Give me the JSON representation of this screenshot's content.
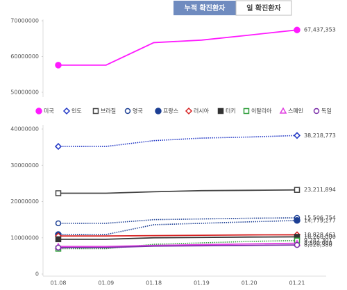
{
  "tabs": [
    "누적 확진환자",
    "일 확진환자"
  ],
  "chart_data": [
    {
      "type": "line",
      "categories": [
        "01.08",
        "01.09",
        "01.18",
        "01.19",
        "01.20",
        "01.21"
      ],
      "ylim": [
        50000000,
        70000000
      ],
      "yticks": [
        50000000,
        60000000,
        70000000
      ],
      "series": [
        {
          "name": "미국",
          "color": "#ff1aff",
          "marker": "filled-circle",
          "dash": "solid",
          "values": [
            57600000,
            57600000,
            63900000,
            64600000,
            66000000,
            67437353
          ],
          "value_labels": [
            null,
            null,
            null,
            null,
            null,
            "67,437,353"
          ]
        }
      ]
    },
    {
      "type": "line",
      "categories": [
        "01.08",
        "01.09",
        "01.18",
        "01.19",
        "01.20",
        "01.21"
      ],
      "ylim": [
        0,
        40000000
      ],
      "yticks": [
        0,
        10000000,
        20000000,
        30000000,
        40000000
      ],
      "series": [
        {
          "name": "인도",
          "color": "#1f35c4",
          "marker": "open-diamond",
          "dash": "dotted",
          "values": [
            35200000,
            35200000,
            36800000,
            37500000,
            37800000,
            38218773
          ],
          "value_labels": [
            null,
            null,
            null,
            null,
            null,
            "38,218,773"
          ]
        },
        {
          "name": "브라질",
          "color": "#444444",
          "marker": "open-square",
          "dash": "solid",
          "values": [
            22300000,
            22300000,
            22700000,
            23000000,
            23100000,
            23211894
          ],
          "value_labels": [
            null,
            null,
            null,
            null,
            null,
            "23,211,894"
          ]
        },
        {
          "name": "영국",
          "color": "#1c3f94",
          "marker": "open-circle",
          "dash": "dotted",
          "values": [
            14000000,
            14000000,
            15000000,
            15200000,
            15400000,
            15506754
          ],
          "value_labels": [
            null,
            null,
            null,
            null,
            null,
            "15,506,754"
          ]
        },
        {
          "name": "프랑스",
          "color": "#1c3f94",
          "marker": "filled-circle",
          "dash": "dotted",
          "values": [
            10900000,
            10900000,
            13600000,
            14000000,
            14400000,
            14779277
          ],
          "value_labels": [
            null,
            null,
            null,
            null,
            null,
            "14,779,277"
          ]
        },
        {
          "name": "러시아",
          "color": "#d62020",
          "marker": "open-diamond",
          "dash": "solid",
          "values": [
            10500000,
            10500000,
            10600000,
            10700000,
            10800000,
            10828461
          ],
          "value_labels": [
            null,
            null,
            null,
            null,
            null,
            "10,828,461"
          ]
        },
        {
          "name": "터키",
          "color": "#333333",
          "marker": "filled-square",
          "dash": "solid",
          "values": [
            9600000,
            9600000,
            10000000,
            10100000,
            10200000,
            10260000
          ],
          "value_labels": [
            null,
            null,
            null,
            null,
            null,
            "10,260,000"
          ]
        },
        {
          "name": "이탈리아",
          "color": "#2e9e3a",
          "marker": "open-square",
          "dash": "dotted",
          "values": [
            7000000,
            7000000,
            8200000,
            8600000,
            9000000,
            9242301
          ],
          "value_labels": [
            null,
            null,
            null,
            null,
            null,
            "9,242,301"
          ]
        },
        {
          "name": "스페인",
          "color": "#e040e0",
          "marker": "open-triangle",
          "dash": "solid",
          "values": [
            7600000,
            7600000,
            7900000,
            8100000,
            8300000,
            8500000
          ],
          "value_labels": [
            null,
            null,
            null,
            null,
            null,
            "8,500,000"
          ]
        },
        {
          "name": "독일",
          "color": "#7a2ea8",
          "marker": "open-circle",
          "dash": "solid",
          "values": [
            7300000,
            7300000,
            7700000,
            7800000,
            7900000,
            8020380
          ],
          "value_labels": [
            null,
            null,
            null,
            null,
            null,
            "8,020,380"
          ]
        }
      ]
    }
  ]
}
